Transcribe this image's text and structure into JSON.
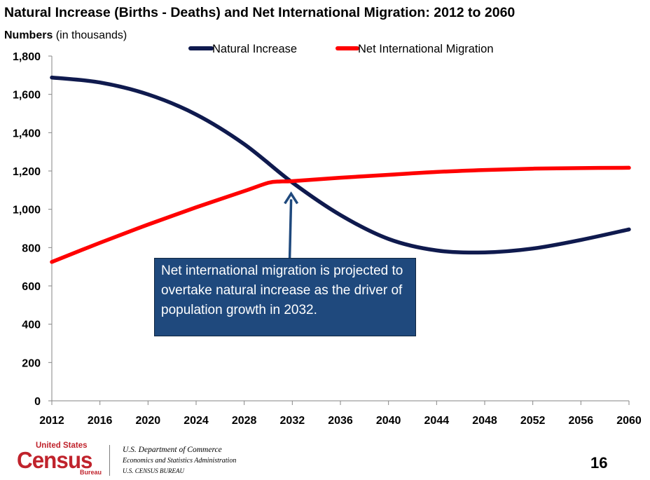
{
  "title": "Natural Increase (Births - Deaths) and Net International Migration: 2012 to 2060",
  "unit_label_bold": "Numbers",
  "unit_label_rest": " (in thousands)",
  "callout_text": "Net international migration is projected to overtake natural increase as the driver of population growth in 2032.",
  "footer": {
    "logo_top": "United States",
    "logo_main": "Census",
    "logo_bureau": "Bureau",
    "dept_line1": "U.S. Department of Commerce",
    "dept_line2": "Economics and Statistics Administration",
    "dept_line3": "U.S. CENSUS BUREAU",
    "page_number": "16"
  },
  "chart_data": {
    "type": "line",
    "title": "Natural Increase (Births - Deaths) and Net International Migration: 2012 to 2060",
    "ylabel": "Numbers (in thousands)",
    "xlabel": "",
    "xlim": [
      2012,
      2060
    ],
    "ylim": [
      0,
      1800
    ],
    "x_ticks": [
      2012,
      2016,
      2020,
      2024,
      2028,
      2032,
      2036,
      2040,
      2044,
      2048,
      2052,
      2056,
      2060
    ],
    "y_ticks": [
      0,
      200,
      400,
      600,
      800,
      1000,
      1200,
      1400,
      1600,
      1800
    ],
    "grid": false,
    "legend_position": "top",
    "annotation": {
      "text": "Net international migration is projected to overtake natural increase as the driver of population growth in 2032.",
      "arrow_x": 2031.9,
      "arrow_y": 1140
    },
    "series": [
      {
        "name": "Natural Increase",
        "color": "#0f1a4e",
        "x": [
          2012,
          2016,
          2020,
          2024,
          2028,
          2032,
          2036,
          2040,
          2044,
          2048,
          2052,
          2056,
          2060
        ],
        "values": [
          1688,
          1662,
          1600,
          1495,
          1340,
          1140,
          970,
          845,
          785,
          775,
          795,
          840,
          895
        ]
      },
      {
        "name": "Net International Migration",
        "color": "#ff0000",
        "x": [
          2012,
          2016,
          2020,
          2024,
          2028,
          2030,
          2031,
          2032,
          2036,
          2040,
          2044,
          2048,
          2052,
          2056,
          2060
        ],
        "values": [
          725,
          825,
          920,
          1010,
          1095,
          1138,
          1145,
          1147,
          1165,
          1180,
          1195,
          1205,
          1212,
          1215,
          1217
        ]
      }
    ]
  }
}
